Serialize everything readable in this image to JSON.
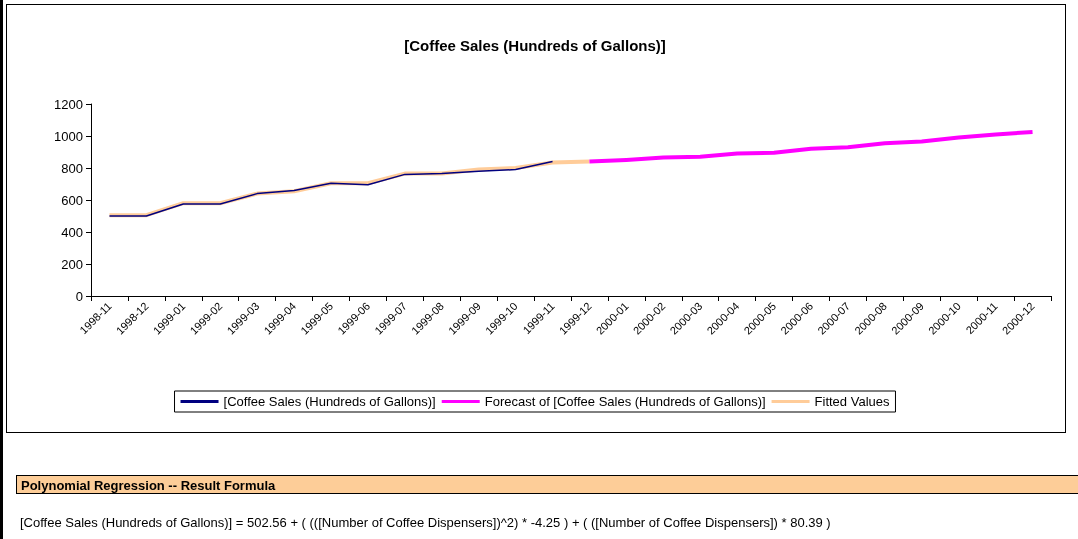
{
  "chart_data": {
    "type": "line",
    "title": "[Coffee Sales (Hundreds of Gallons)]",
    "categories": [
      "1998-11",
      "1998-12",
      "1999-01",
      "1999-02",
      "1999-03",
      "1999-04",
      "1999-05",
      "1999-06",
      "1999-07",
      "1999-08",
      "1999-09",
      "1999-10",
      "1999-11",
      "1999-12",
      "2000-01",
      "2000-02",
      "2000-03",
      "2000-04",
      "2000-05",
      "2000-06",
      "2000-07",
      "2000-08",
      "2000-09",
      "2000-10",
      "2000-11",
      "2000-12"
    ],
    "series": [
      {
        "name": "[Coffee Sales (Hundreds of Gallons)]",
        "color": "#000080",
        "values": [
          500,
          500,
          575,
          575,
          640,
          660,
          705,
          695,
          760,
          765,
          780,
          790,
          840,
          null,
          null,
          null,
          null,
          null,
          null,
          null,
          null,
          null,
          null,
          null,
          null,
          null
        ]
      },
      {
        "name": "Forecast of [Coffee Sales (Hundreds of Gallons)]",
        "color": "#ff00ff",
        "values": [
          null,
          null,
          null,
          null,
          null,
          null,
          null,
          null,
          null,
          null,
          null,
          null,
          null,
          840,
          850,
          865,
          870,
          890,
          895,
          920,
          930,
          955,
          965,
          990,
          1010,
          1025
        ]
      },
      {
        "name": "Fitted Values",
        "color": "#ffcc99",
        "values": [
          505,
          505,
          580,
          580,
          640,
          655,
          705,
          705,
          765,
          765,
          790,
          800,
          835,
          840,
          null,
          null,
          null,
          null,
          null,
          null,
          null,
          null,
          null,
          null,
          null,
          null
        ]
      }
    ],
    "ylim": [
      0,
      1200
    ],
    "yticks": [
      0,
      200,
      400,
      600,
      800,
      1000,
      1200
    ],
    "grid": false,
    "legend": "bottom",
    "marker": "none",
    "line_style": "solid",
    "annotations": [
      "Polynomial Regression -- Result Formula",
      "[Coffee Sales (Hundreds of Gallons)] = 502.56 + ( (([Number of Coffee Dispensers])^2) * -4.25 )  + ( ([Number of Coffee Dispensers]) * 80.39 )"
    ]
  }
}
